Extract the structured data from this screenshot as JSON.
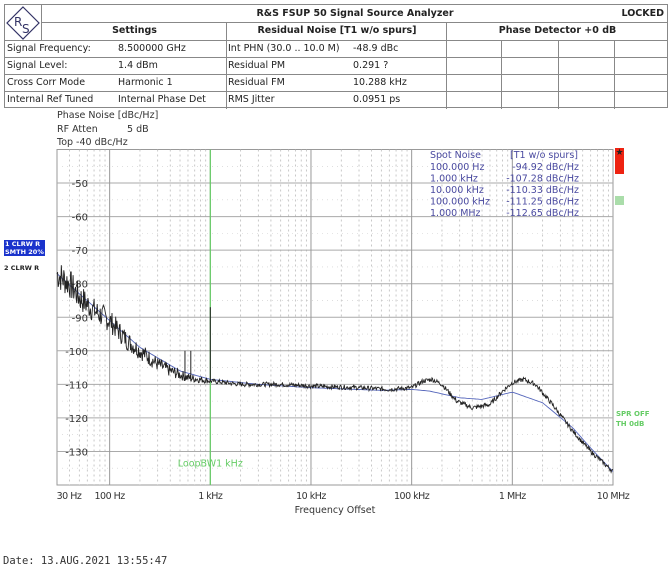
{
  "header": {
    "title": "R&S FSUP 50 Signal Source Analyzer",
    "status": "LOCKED",
    "logo": "R&S",
    "settings_title": "Settings",
    "residual_title": "Residual Noise [T1 w/o spurs]",
    "phase_det_title": "Phase Detector +0 dB",
    "rows": [
      {
        "label": "Signal Frequency:",
        "value": "8.500000 GHz",
        "rlabel": "Int PHN (30.0  .. 10.0 M)",
        "rvalue": "-48.9 dBc"
      },
      {
        "label": "Signal Level:",
        "value": "1.4 dBm",
        "rlabel": "Residual PM",
        "rvalue": "0.291 ?"
      },
      {
        "label": "Cross Corr Mode",
        "value": "Harmonic 1",
        "rlabel": "Residual FM",
        "rvalue": "10.288 kHz"
      },
      {
        "label": "Internal Ref Tuned",
        "value": "Internal Phase Det",
        "rlabel": "RMS Jitter",
        "rvalue": "0.0951 ps"
      }
    ]
  },
  "meas": {
    "mode": "Phase Noise [dBc/Hz]",
    "rf_atten_label": "RF Atten",
    "rf_atten": "5 dB",
    "top": "Top  -40 dBc/Hz"
  },
  "traces_legend": {
    "t1": "1 CLRW R",
    "t1b": "SMTH 20%",
    "t2": "2 CLRW R",
    "spr": "SPR OFF",
    "th": "TH 0dB"
  },
  "spot_noise": {
    "title": "Spot Noise",
    "col": "[T1 w/o spurs]",
    "rows": [
      {
        "f": "100.000 Hz",
        "v": "-94.92 dBc/Hz"
      },
      {
        "f": "1.000 kHz",
        "v": "-107.28 dBc/Hz"
      },
      {
        "f": "10.000 kHz",
        "v": "-110.33 dBc/Hz"
      },
      {
        "f": "100.000 kHz",
        "v": "-111.25 dBc/Hz"
      },
      {
        "f": "1.000 MHz",
        "v": "-112.65 dBc/Hz"
      }
    ]
  },
  "date": "Date: 13.AUG.2021   13:55:47",
  "chart_data": {
    "type": "line",
    "xscale": "log",
    "xlabel": "Frequency Offset",
    "ylabel": "Phase Noise [dBc/Hz]",
    "xlim": [
      30,
      10000000
    ],
    "ylim": [
      -140,
      -40
    ],
    "grid": true,
    "xticks": [
      {
        "v": 30,
        "t": "30 Hz"
      },
      {
        "v": 100,
        "t": "100 Hz"
      },
      {
        "v": 1000,
        "t": "1 kHz"
      },
      {
        "v": 10000,
        "t": "10 kHz"
      },
      {
        "v": 100000,
        "t": "100 kHz"
      },
      {
        "v": 1000000,
        "t": "1 MHz"
      },
      {
        "v": 10000000,
        "t": "10 MHz"
      }
    ],
    "yticks": [
      -50,
      -60,
      -70,
      -80,
      -90,
      -100,
      -110,
      -120,
      -130
    ],
    "markers": [
      {
        "x": 1000,
        "label": "LoopBW1 kHz",
        "color": "#66cc66"
      }
    ],
    "series": [
      {
        "id": "trace1",
        "color": "#222222",
        "noisy": true,
        "x": [
          30,
          40,
          50,
          70,
          100,
          150,
          200,
          300,
          400,
          600,
          1000,
          2000,
          5000,
          10000,
          30000,
          60000,
          100000,
          130000,
          160000,
          200000,
          280000,
          400000,
          600000,
          800000,
          1000000,
          1300000,
          1700000,
          2500000,
          4000000,
          6000000,
          10000000
        ],
        "y": [
          -77,
          -80,
          -84,
          -88,
          -91,
          -97,
          -100,
          -104,
          -106,
          -108,
          -109,
          -110,
          -110,
          -110.5,
          -111,
          -111.5,
          -111,
          -109,
          -108.5,
          -110,
          -115,
          -117,
          -116,
          -112,
          -109.5,
          -108.5,
          -110,
          -116,
          -124,
          -130,
          -136
        ],
        "spurs": [
          {
            "x": 560,
            "y": -100
          },
          {
            "x": 640,
            "y": -100
          },
          {
            "x": 1000,
            "y": -87
          }
        ]
      },
      {
        "id": "trace2",
        "color": "#5566bb",
        "noisy": false,
        "x": [
          30,
          50,
          100,
          200,
          500,
          1000,
          3000,
          10000,
          50000,
          100000,
          150000,
          300000,
          500000,
          800000,
          1000000,
          2000000,
          4000000,
          6000000,
          10000000
        ],
        "y": [
          -77,
          -83,
          -91,
          -99,
          -106,
          -108.5,
          -110,
          -111,
          -111.8,
          -111.5,
          -112,
          -114,
          -114.5,
          -113,
          -112.3,
          -115.5,
          -123,
          -129,
          -136
        ]
      }
    ]
  },
  "colors": {
    "spot_text": "#4a4aa0",
    "marker_green": "#66cc66",
    "legend_blue": "#1a33cc",
    "red_box": "#ee2211"
  }
}
